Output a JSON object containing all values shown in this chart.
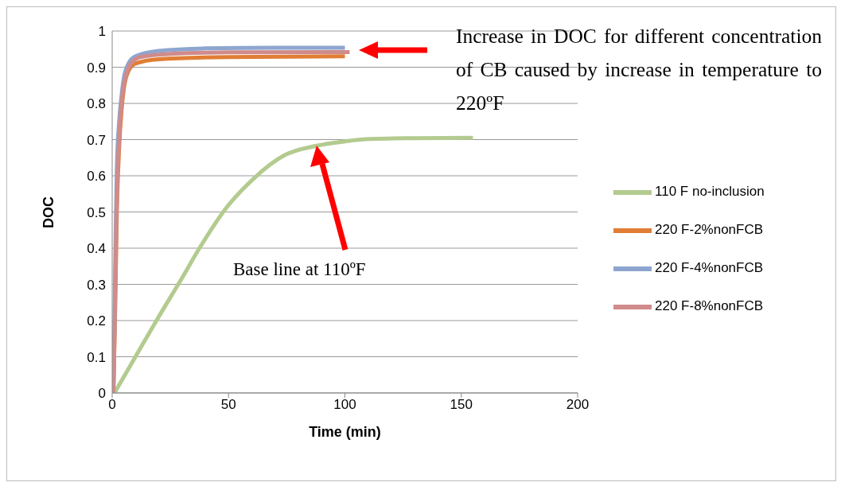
{
  "chart_data": {
    "type": "line",
    "xlabel": "Time (min)",
    "ylabel": "DOC",
    "xlim": [
      0,
      200
    ],
    "xticks": [
      0,
      50,
      100,
      150,
      200
    ],
    "ylim": [
      0,
      1
    ],
    "yticks": [
      0,
      0.1,
      0.2,
      0.3,
      0.4,
      0.5,
      0.6,
      0.7,
      0.8,
      0.9,
      1
    ],
    "grid": "y",
    "legend": "right",
    "marker": "none",
    "line_style": "solid",
    "series": [
      {
        "name": "110 F no-inclusion",
        "color": "#b3cb8f",
        "x": [
          1,
          10,
          19.4,
          29.6,
          37.6,
          49,
          60.4,
          74.1,
          87.8,
          100,
          109,
          130,
          155
        ],
        "values": [
          0,
          0.1,
          0.204,
          0.313,
          0.401,
          0.511,
          0.59,
          0.657,
          0.683,
          0.695,
          0.701,
          0.704,
          0.705
        ]
      },
      {
        "name": "220 F-2%nonFCB",
        "color": "#e07e36",
        "x": [
          0.5,
          1.2,
          2,
          3,
          4,
          5,
          7,
          10,
          20,
          50,
          100
        ],
        "values": [
          0,
          0.2,
          0.5,
          0.68,
          0.78,
          0.84,
          0.89,
          0.91,
          0.922,
          0.928,
          0.93
        ]
      },
      {
        "name": "220 F-4%nonFCB",
        "color": "#8ea6cf",
        "x": [
          0.5,
          1,
          1.5,
          2,
          3,
          4,
          5,
          7,
          10,
          20,
          40,
          70,
          100
        ],
        "values": [
          0,
          0.2,
          0.45,
          0.62,
          0.75,
          0.82,
          0.87,
          0.91,
          0.93,
          0.945,
          0.952,
          0.954,
          0.954
        ]
      },
      {
        "name": "220 F-8%nonFCB",
        "color": "#d08b8b",
        "x": [
          0.5,
          1.1,
          1.8,
          2.5,
          3.5,
          4.5,
          6,
          8,
          12,
          25,
          50,
          102
        ],
        "values": [
          0,
          0.2,
          0.48,
          0.64,
          0.76,
          0.83,
          0.88,
          0.91,
          0.928,
          0.937,
          0.941,
          0.942
        ]
      }
    ],
    "annotations": [
      "Increase in DOC for different concentration of CB caused by increase in temperature to 220ºF",
      "Base line at 110ºF"
    ]
  }
}
